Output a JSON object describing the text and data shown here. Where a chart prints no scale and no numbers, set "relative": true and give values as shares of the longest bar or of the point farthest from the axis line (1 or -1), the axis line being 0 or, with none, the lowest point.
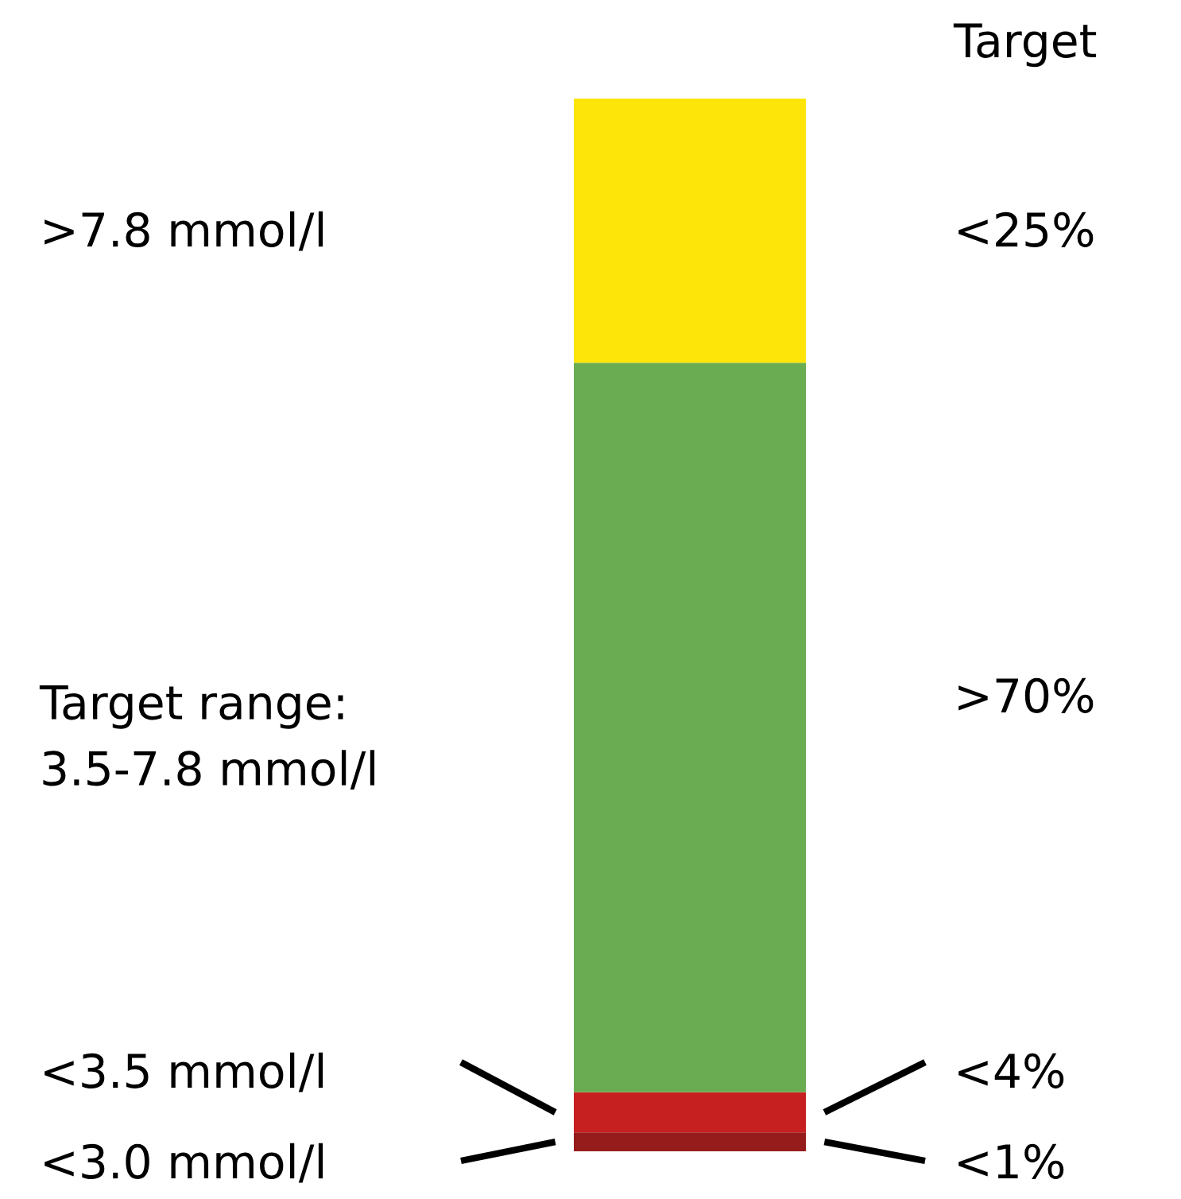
{
  "chart_data": {
    "type": "bar",
    "stacked": true,
    "relative": true,
    "categories": [
      null
    ],
    "series": [
      {
        "color": "#961b1b",
        "values": [
          0.018
        ]
      },
      {
        "color": "#c62020",
        "values": [
          0.038
        ]
      },
      {
        "color": "#6aac52",
        "values": [
          0.693
        ]
      },
      {
        "color": "#fde50a",
        "values": [
          0.251
        ]
      }
    ],
    "annotations": [
      "Target",
      ">7.8 mmol/l",
      "<25%",
      "Target range:\n3.5-7.8 mmol/l",
      ">70%",
      "<3.5 mmol/l",
      "<4%",
      "<3.0 mmol/l",
      "<1%"
    ],
    "legend": false
  }
}
